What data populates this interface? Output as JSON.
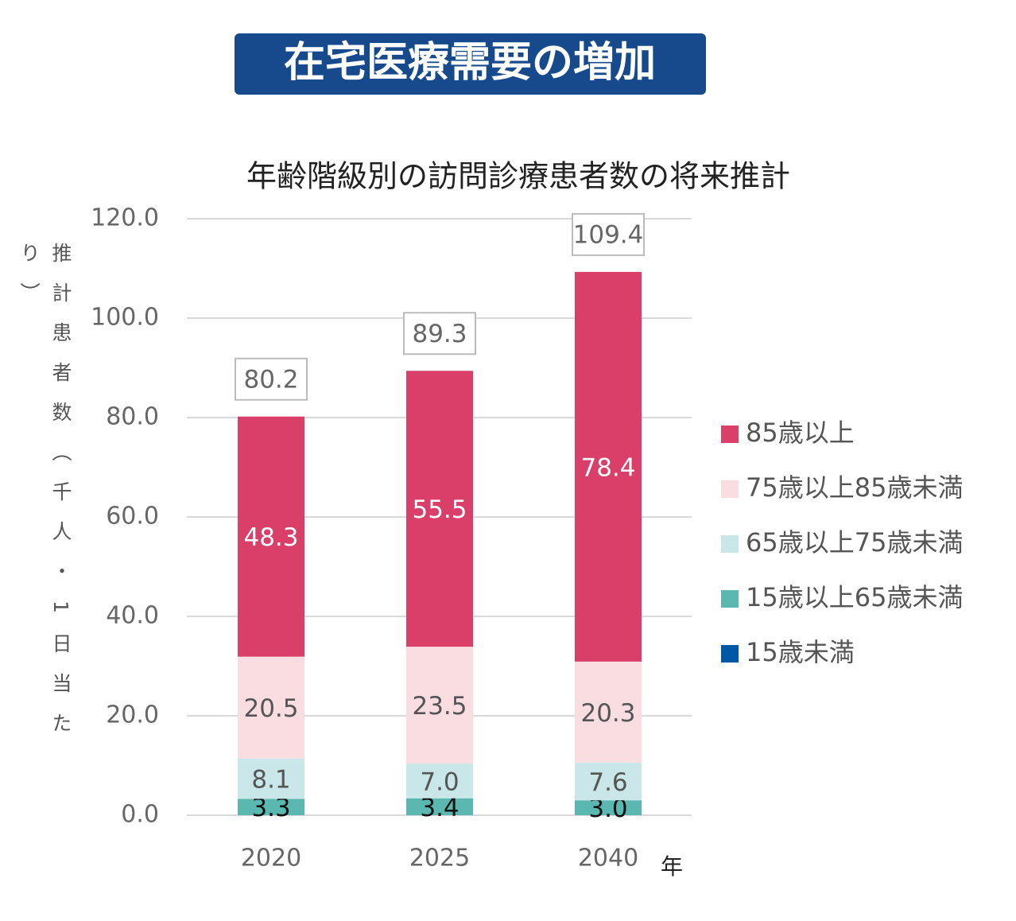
{
  "header": {
    "title": "在宅医療需要の増加"
  },
  "chart_data": {
    "type": "stacked-bar",
    "title": "年齢階級別の訪問診療患者数の将来推計",
    "y_label": "推計患者数（千人・1日当たり）",
    "x_label": "年",
    "categories": [
      "2020",
      "2025",
      "2040"
    ],
    "series": [
      {
        "name": "15歳未満",
        "color": "#0057a8",
        "values": [
          0,
          0,
          0
        ]
      },
      {
        "name": "15歳以上65歳未満",
        "color": "#5bb8b0",
        "values": [
          3.3,
          3.4,
          3.0
        ],
        "value_labels": [
          "3.3",
          "3.4",
          "3.0"
        ]
      },
      {
        "name": "65歳以上75歳未満",
        "color": "#c9e6e8",
        "values": [
          8.1,
          7.0,
          7.6
        ],
        "value_labels": [
          "8.1",
          "7.0",
          "7.6"
        ]
      },
      {
        "name": "75歳以上85歳未満",
        "color": "#fadde1",
        "values": [
          20.5,
          23.5,
          20.3
        ],
        "value_labels": [
          "20.5",
          "23.5",
          "20.3"
        ]
      },
      {
        "name": "85歳以上",
        "color": "#d93f68",
        "values": [
          48.3,
          55.5,
          78.4
        ],
        "value_labels": [
          "48.3",
          "55.5",
          "78.4"
        ]
      }
    ],
    "totals": [
      80.2,
      89.3,
      109.4
    ],
    "ylim": [
      0,
      120
    ],
    "yticks": [
      {
        "value": 0,
        "label": "0.0"
      },
      {
        "value": 20,
        "label": "20.0"
      },
      {
        "value": 40,
        "label": "40.0"
      },
      {
        "value": 60,
        "label": "60.0"
      },
      {
        "value": 80,
        "label": "80.0"
      },
      {
        "value": 100,
        "label": "100.0"
      },
      {
        "value": 120,
        "label": "120.0"
      }
    ],
    "grid": true,
    "legend": "right"
  }
}
